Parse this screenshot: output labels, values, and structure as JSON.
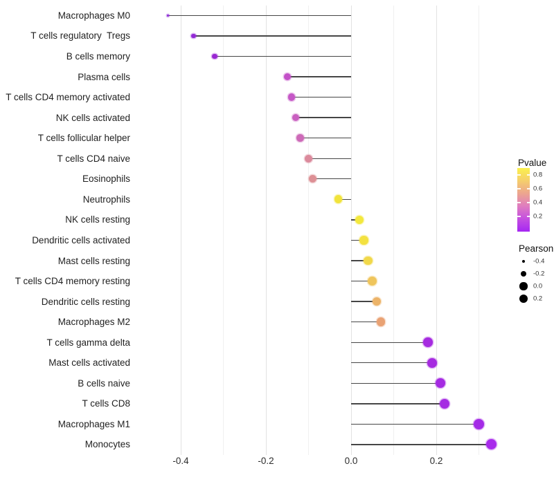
{
  "chart_data": {
    "type": "lollipop",
    "title": "",
    "xlabel": "",
    "ylabel": "",
    "x_tick_labels": [
      "-0.4",
      "-0.2",
      "0.0",
      "0.2"
    ],
    "x_tick_values": [
      -0.4,
      -0.2,
      0.0,
      0.2
    ],
    "x_minor_tick_values": [
      -0.3,
      -0.1,
      0.1,
      0.3
    ],
    "xlim": [
      -0.5,
      0.36
    ],
    "grid": "on",
    "legend_position": "right",
    "points": [
      {
        "label": "Macrophages M0",
        "pearson": -0.43,
        "color": "#8E2BD8"
      },
      {
        "label": "T cells regulatory  Tregs",
        "pearson": -0.37,
        "color": "#9329D6"
      },
      {
        "label": "B cells memory",
        "pearson": -0.32,
        "color": "#9927D2"
      },
      {
        "label": "Plasma cells",
        "pearson": -0.15,
        "color": "#C351C8"
      },
      {
        "label": "T cells CD4 memory activated",
        "pearson": -0.14,
        "color": "#C557C6"
      },
      {
        "label": "NK cells activated",
        "pearson": -0.13,
        "color": "#C960C0"
      },
      {
        "label": "T cells follicular helper",
        "pearson": -0.12,
        "color": "#CD6AB8"
      },
      {
        "label": "T cells CD4 naive",
        "pearson": -0.1,
        "color": "#DB8A9C"
      },
      {
        "label": "Eosinophils",
        "pearson": -0.09,
        "color": "#DD9095"
      },
      {
        "label": "Neutrophils",
        "pearson": -0.03,
        "color": "#F1E33C"
      },
      {
        "label": "NK cells resting",
        "pearson": 0.02,
        "color": "#F3E83D"
      },
      {
        "label": "Dendritic cells activated",
        "pearson": 0.03,
        "color": "#F3E140"
      },
      {
        "label": "Mast cells resting",
        "pearson": 0.04,
        "color": "#F1D84A"
      },
      {
        "label": "T cells CD4 memory resting",
        "pearson": 0.05,
        "color": "#EFC55C"
      },
      {
        "label": "Dendritic cells resting",
        "pearson": 0.06,
        "color": "#ECB368"
      },
      {
        "label": "Macrophages M2",
        "pearson": 0.07,
        "color": "#E9A274"
      },
      {
        "label": "T cells gamma delta",
        "pearson": 0.18,
        "color": "#A62BE0"
      },
      {
        "label": "Mast cells activated",
        "pearson": 0.19,
        "color": "#A62BE0"
      },
      {
        "label": "B cells naive",
        "pearson": 0.21,
        "color": "#A52BE2"
      },
      {
        "label": "T cells CD8",
        "pearson": 0.22,
        "color": "#A52BE2"
      },
      {
        "label": "Macrophages M1",
        "pearson": 0.3,
        "color": "#A42BE6"
      },
      {
        "label": "Monocytes",
        "pearson": 0.33,
        "color": "#A82BEB"
      }
    ]
  },
  "legend": {
    "pvalue": {
      "title": "Pvalue",
      "tick_labels": [
        "0.8",
        "0.6",
        "0.4",
        "0.2"
      ],
      "gradient_top_to_bottom": [
        "#FBF14D",
        "#F5CE6C",
        "#ECA58F",
        "#DF7CC0",
        "#C44FE0",
        "#A527F2"
      ]
    },
    "pearson": {
      "title": "Pearson",
      "items": [
        {
          "label": "-0.4",
          "value": -0.4
        },
        {
          "label": "-0.2",
          "value": -0.2
        },
        {
          "label": "0.0",
          "value": 0.0
        },
        {
          "label": "0.2",
          "value": 0.2
        }
      ],
      "dot_color": "#000000"
    }
  },
  "colors": {
    "background": "#FFFFFF",
    "grid_major": "#E2E2E2",
    "grid_minor": "#F0F0F0",
    "stem": "#454545",
    "axis_text": "#2E2E2E",
    "label_text": "#1F1F1F"
  }
}
